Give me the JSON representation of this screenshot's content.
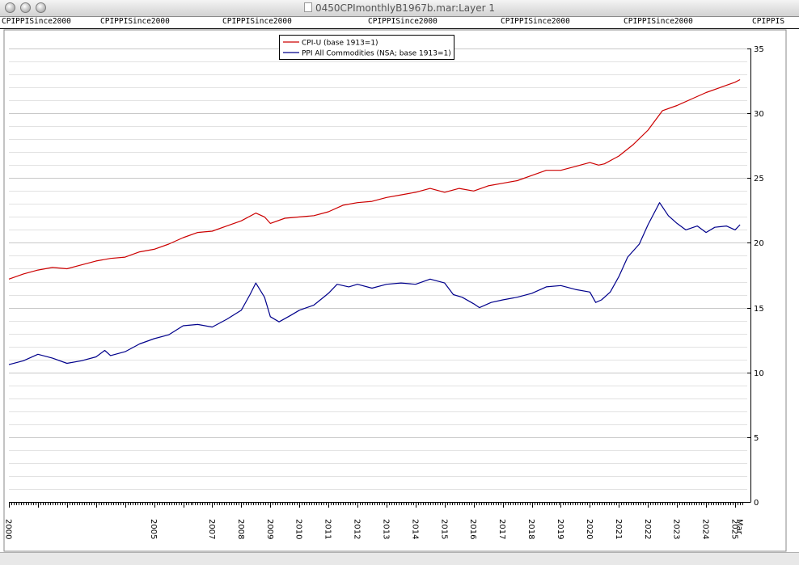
{
  "window": {
    "title": "0450CPImonthlyB1967b.mar:Layer 1"
  },
  "label_strip": [
    "CPIPPISince2000",
    "CPIPPISince2000",
    "CPIPPISince2000",
    "CPIPPISince2000",
    "CPIPPISince2000",
    "CPIPPISince2000",
    "CPIPPIS"
  ],
  "chart_data": {
    "type": "line",
    "title": "",
    "xlabel": "",
    "ylabel": "",
    "ylim": [
      0,
      35
    ],
    "yticks": [
      0,
      5,
      10,
      15,
      20,
      25,
      30,
      35
    ],
    "xlim": [
      2000.0,
      2025.25
    ],
    "xticks": [
      {
        "label": "2000",
        "x": 2000.0
      },
      {
        "label": "2005",
        "x": 2005.0
      },
      {
        "label": "2007",
        "x": 2007.0
      },
      {
        "label": "2008",
        "x": 2008.0
      },
      {
        "label": "2009",
        "x": 2009.0
      },
      {
        "label": "2010",
        "x": 2010.0
      },
      {
        "label": "2011",
        "x": 2011.0
      },
      {
        "label": "2012",
        "x": 2012.0
      },
      {
        "label": "2013",
        "x": 2013.0
      },
      {
        "label": "2014",
        "x": 2014.0
      },
      {
        "label": "2015",
        "x": 2015.0
      },
      {
        "label": "2016",
        "x": 2016.0
      },
      {
        "label": "2017",
        "x": 2017.0
      },
      {
        "label": "2018",
        "x": 2018.0
      },
      {
        "label": "2019",
        "x": 2019.0
      },
      {
        "label": "2020",
        "x": 2020.0
      },
      {
        "label": "2021",
        "x": 2021.0
      },
      {
        "label": "2022",
        "x": 2022.0
      },
      {
        "label": "2023",
        "x": 2023.0
      },
      {
        "label": "2024",
        "x": 2024.0
      },
      {
        "label": "2025",
        "x": 2025.0
      },
      {
        "label": "Mar",
        "x": 2025.17
      }
    ],
    "grid": true,
    "legend_position": "top-center",
    "series": [
      {
        "name": "CPI-U (base 1913=1)",
        "color": "#cc0000",
        "points": [
          [
            2000.0,
            17.2
          ],
          [
            2000.5,
            17.6
          ],
          [
            2001.0,
            17.9
          ],
          [
            2001.5,
            18.1
          ],
          [
            2002.0,
            18.0
          ],
          [
            2002.5,
            18.3
          ],
          [
            2003.0,
            18.6
          ],
          [
            2003.5,
            18.8
          ],
          [
            2004.0,
            18.9
          ],
          [
            2004.5,
            19.3
          ],
          [
            2005.0,
            19.5
          ],
          [
            2005.5,
            19.9
          ],
          [
            2006.0,
            20.4
          ],
          [
            2006.5,
            20.8
          ],
          [
            2007.0,
            20.9
          ],
          [
            2007.5,
            21.3
          ],
          [
            2008.0,
            21.7
          ],
          [
            2008.5,
            22.3
          ],
          [
            2008.8,
            22.0
          ],
          [
            2009.0,
            21.5
          ],
          [
            2009.5,
            21.9
          ],
          [
            2010.0,
            22.0
          ],
          [
            2010.5,
            22.1
          ],
          [
            2011.0,
            22.4
          ],
          [
            2011.5,
            22.9
          ],
          [
            2012.0,
            23.1
          ],
          [
            2012.5,
            23.2
          ],
          [
            2013.0,
            23.5
          ],
          [
            2013.5,
            23.7
          ],
          [
            2014.0,
            23.9
          ],
          [
            2014.5,
            24.2
          ],
          [
            2015.0,
            23.9
          ],
          [
            2015.5,
            24.2
          ],
          [
            2016.0,
            24.0
          ],
          [
            2016.5,
            24.4
          ],
          [
            2017.0,
            24.6
          ],
          [
            2017.5,
            24.8
          ],
          [
            2018.0,
            25.2
          ],
          [
            2018.5,
            25.6
          ],
          [
            2019.0,
            25.6
          ],
          [
            2019.5,
            25.9
          ],
          [
            2020.0,
            26.2
          ],
          [
            2020.3,
            26.0
          ],
          [
            2020.5,
            26.1
          ],
          [
            2021.0,
            26.7
          ],
          [
            2021.5,
            27.6
          ],
          [
            2022.0,
            28.7
          ],
          [
            2022.5,
            30.2
          ],
          [
            2023.0,
            30.6
          ],
          [
            2023.5,
            31.1
          ],
          [
            2024.0,
            31.6
          ],
          [
            2024.5,
            32.0
          ],
          [
            2025.0,
            32.4
          ],
          [
            2025.17,
            32.6
          ]
        ]
      },
      {
        "name": "PPI All Commodities (NSA; base 1913=1)",
        "color": "#00008b",
        "points": [
          [
            2000.0,
            10.6
          ],
          [
            2000.5,
            10.9
          ],
          [
            2001.0,
            11.4
          ],
          [
            2001.5,
            11.1
          ],
          [
            2002.0,
            10.7
          ],
          [
            2002.5,
            10.9
          ],
          [
            2003.0,
            11.2
          ],
          [
            2003.3,
            11.7
          ],
          [
            2003.5,
            11.3
          ],
          [
            2004.0,
            11.6
          ],
          [
            2004.5,
            12.2
          ],
          [
            2005.0,
            12.6
          ],
          [
            2005.5,
            12.9
          ],
          [
            2006.0,
            13.6
          ],
          [
            2006.5,
            13.7
          ],
          [
            2007.0,
            13.5
          ],
          [
            2007.5,
            14.1
          ],
          [
            2008.0,
            14.8
          ],
          [
            2008.3,
            16.0
          ],
          [
            2008.5,
            16.9
          ],
          [
            2008.8,
            15.8
          ],
          [
            2009.0,
            14.3
          ],
          [
            2009.3,
            13.9
          ],
          [
            2009.7,
            14.4
          ],
          [
            2010.0,
            14.8
          ],
          [
            2010.5,
            15.2
          ],
          [
            2011.0,
            16.1
          ],
          [
            2011.3,
            16.8
          ],
          [
            2011.7,
            16.6
          ],
          [
            2012.0,
            16.8
          ],
          [
            2012.5,
            16.5
          ],
          [
            2013.0,
            16.8
          ],
          [
            2013.5,
            16.9
          ],
          [
            2014.0,
            16.8
          ],
          [
            2014.5,
            17.2
          ],
          [
            2015.0,
            16.9
          ],
          [
            2015.3,
            16.0
          ],
          [
            2015.6,
            15.8
          ],
          [
            2016.0,
            15.3
          ],
          [
            2016.2,
            15.0
          ],
          [
            2016.6,
            15.4
          ],
          [
            2017.0,
            15.6
          ],
          [
            2017.5,
            15.8
          ],
          [
            2018.0,
            16.1
          ],
          [
            2018.5,
            16.6
          ],
          [
            2019.0,
            16.7
          ],
          [
            2019.5,
            16.4
          ],
          [
            2020.0,
            16.2
          ],
          [
            2020.2,
            15.4
          ],
          [
            2020.4,
            15.6
          ],
          [
            2020.7,
            16.2
          ],
          [
            2021.0,
            17.4
          ],
          [
            2021.3,
            18.9
          ],
          [
            2021.7,
            19.9
          ],
          [
            2022.0,
            21.4
          ],
          [
            2022.4,
            23.1
          ],
          [
            2022.7,
            22.1
          ],
          [
            2023.0,
            21.5
          ],
          [
            2023.3,
            21.0
          ],
          [
            2023.7,
            21.3
          ],
          [
            2024.0,
            20.8
          ],
          [
            2024.3,
            21.2
          ],
          [
            2024.7,
            21.3
          ],
          [
            2025.0,
            21.0
          ],
          [
            2025.17,
            21.4
          ]
        ]
      }
    ]
  }
}
